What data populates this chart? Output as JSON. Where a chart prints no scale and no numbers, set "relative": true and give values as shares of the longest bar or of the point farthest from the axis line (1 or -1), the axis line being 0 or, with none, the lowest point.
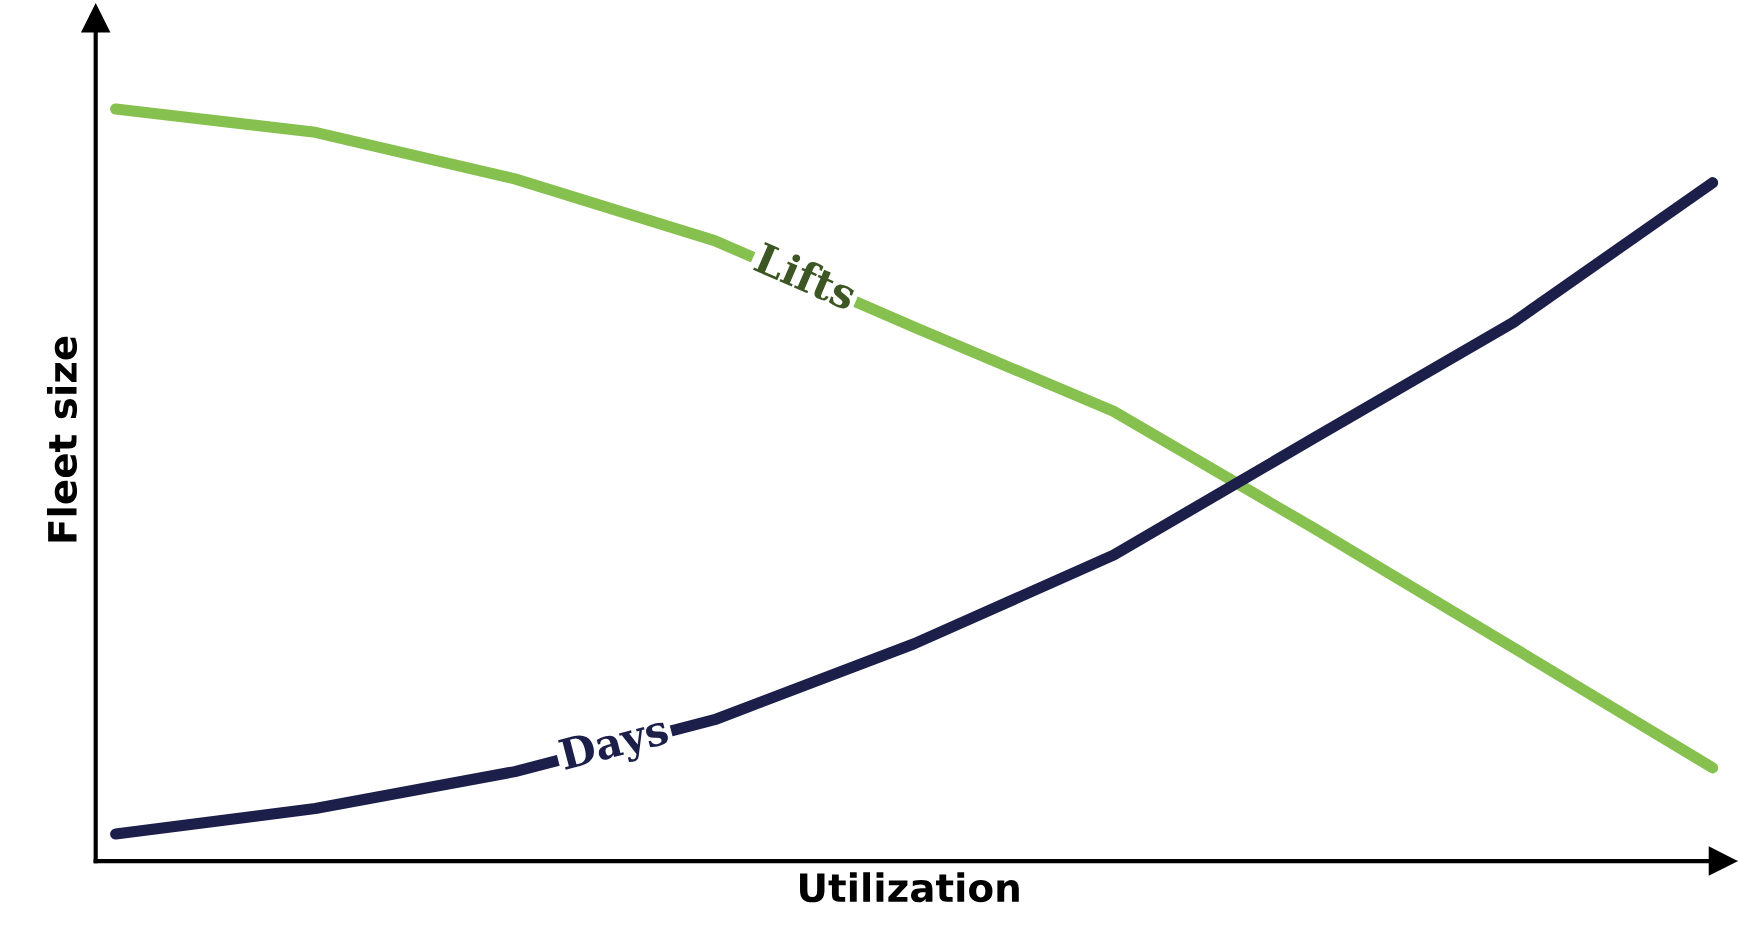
{
  "chart_data": {
    "type": "line",
    "relative": true,
    "xlabel": "Utilization",
    "ylabel": "Fleet size",
    "categories": [
      null,
      null,
      null,
      null,
      null,
      null,
      null,
      null,
      null
    ],
    "series": [
      {
        "name": "Lifts",
        "color": "#86c04f",
        "values": [
          1.0,
          0.969,
          0.907,
          0.825,
          0.71,
          0.598,
          0.443,
          0.284,
          0.124
        ]
      },
      {
        "name": "Days",
        "color": "#1c1f4a",
        "values": [
          0.036,
          0.07,
          0.119,
          0.188,
          0.289,
          0.407,
          0.562,
          0.716,
          0.902
        ]
      }
    ],
    "legend": false,
    "marker": "none",
    "line_style": "solid"
  }
}
